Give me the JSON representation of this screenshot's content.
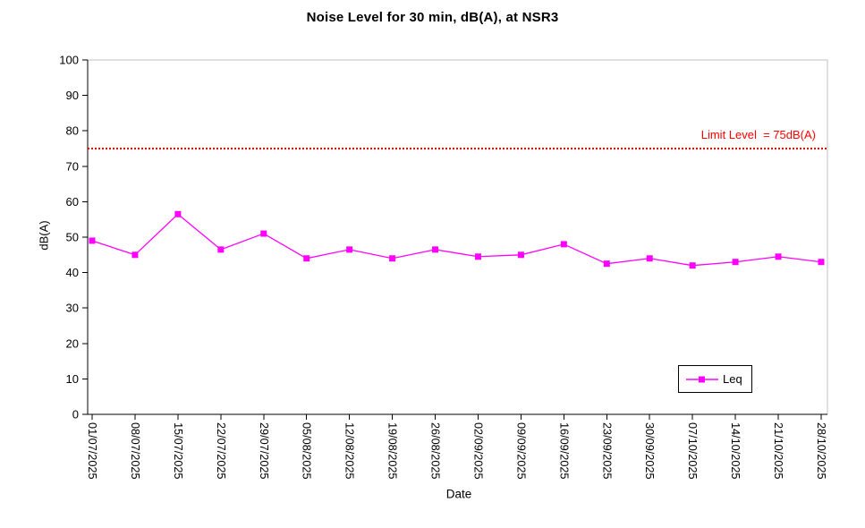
{
  "chart_data": {
    "type": "line",
    "title": "Noise Level for 30 min, dB(A), at NSR3",
    "xlabel": "Date",
    "ylabel": "dB(A)",
    "ylim": [
      0,
      100
    ],
    "ytick_step": 10,
    "grid": false,
    "plot_border_color": "#C0C0C0",
    "axis_color": "#000000",
    "background_color": "#FFFFFF",
    "categories": [
      "01/07/2025",
      "08/07/2025",
      "15/07/2025",
      "22/07/2025",
      "29/07/2025",
      "05/08/2025",
      "12/08/2025",
      "19/08/2025",
      "26/08/2025",
      "02/09/2025",
      "09/09/2025",
      "16/09/2025",
      "23/09/2025",
      "30/09/2025",
      "07/10/2025",
      "14/10/2025",
      "21/10/2025",
      "28/10/2025"
    ],
    "series": [
      {
        "name": "Leq",
        "color": "#FF00FF",
        "marker": "square",
        "values": [
          49,
          45,
          56.5,
          46.5,
          51,
          44,
          46.5,
          44,
          46.5,
          44.5,
          45,
          48,
          42.5,
          44,
          42,
          43,
          44.5,
          43
        ]
      }
    ],
    "annotations": [
      {
        "type": "hline",
        "value": 75,
        "label": "Limit Level  = 75dB(A)",
        "color": "#FF0000",
        "style": "dotted"
      }
    ],
    "legend": {
      "position": "inside-bottom-right",
      "entries": [
        "Leq"
      ]
    }
  }
}
